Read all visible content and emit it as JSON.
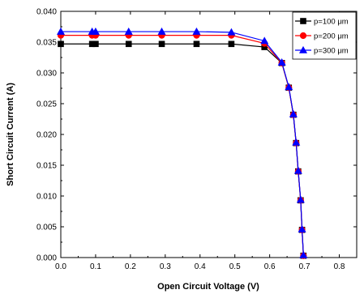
{
  "chart_data": {
    "type": "line",
    "xlabel": "Open Circuit Voltage (V)",
    "ylabel": "Short Circuit Current (A)",
    "xlim": [
      0.0,
      0.85
    ],
    "ylim": [
      0.0,
      0.04
    ],
    "xticks": [
      "0.0",
      "0.1",
      "0.2",
      "0.3",
      "0.4",
      "0.5",
      "0.6",
      "0.7",
      "0.8"
    ],
    "yticks": [
      "0.000",
      "0.005",
      "0.010",
      "0.015",
      "0.020",
      "0.025",
      "0.030",
      "0.035",
      "0.040"
    ],
    "legend_position": "top-right",
    "grid": false,
    "series": [
      {
        "name": "p=100 μm",
        "color": "#000000",
        "marker": "square",
        "x": [
          0.0,
          0.09,
          0.1,
          0.195,
          0.29,
          0.39,
          0.49,
          0.585,
          0.635,
          0.655,
          0.668,
          0.676,
          0.682,
          0.689,
          0.693,
          0.697
        ],
        "y": [
          0.0347,
          0.0347,
          0.0347,
          0.0347,
          0.0347,
          0.0347,
          0.0347,
          0.0342,
          0.0316,
          0.0276,
          0.0232,
          0.0186,
          0.014,
          0.0093,
          0.0045,
          0.0003
        ]
      },
      {
        "name": "p=200 μm",
        "color": "#ff0000",
        "marker": "circle",
        "x": [
          0.0,
          0.09,
          0.1,
          0.195,
          0.29,
          0.39,
          0.49,
          0.585,
          0.635,
          0.655,
          0.668,
          0.676,
          0.682,
          0.689,
          0.693,
          0.697
        ],
        "y": [
          0.0361,
          0.0361,
          0.0361,
          0.0361,
          0.0361,
          0.0361,
          0.0361,
          0.0348,
          0.0316,
          0.0276,
          0.0232,
          0.0186,
          0.014,
          0.0093,
          0.0045,
          0.0003
        ]
      },
      {
        "name": "p=300 μm",
        "color": "#0000ff",
        "marker": "triangle",
        "x": [
          0.0,
          0.09,
          0.1,
          0.195,
          0.29,
          0.39,
          0.49,
          0.585,
          0.635,
          0.655,
          0.668,
          0.676,
          0.682,
          0.689,
          0.693,
          0.697
        ],
        "y": [
          0.0367,
          0.0367,
          0.0367,
          0.0367,
          0.0367,
          0.0367,
          0.0366,
          0.0352,
          0.0317,
          0.0277,
          0.0233,
          0.0187,
          0.0141,
          0.0094,
          0.0046,
          0.0004
        ]
      }
    ]
  }
}
